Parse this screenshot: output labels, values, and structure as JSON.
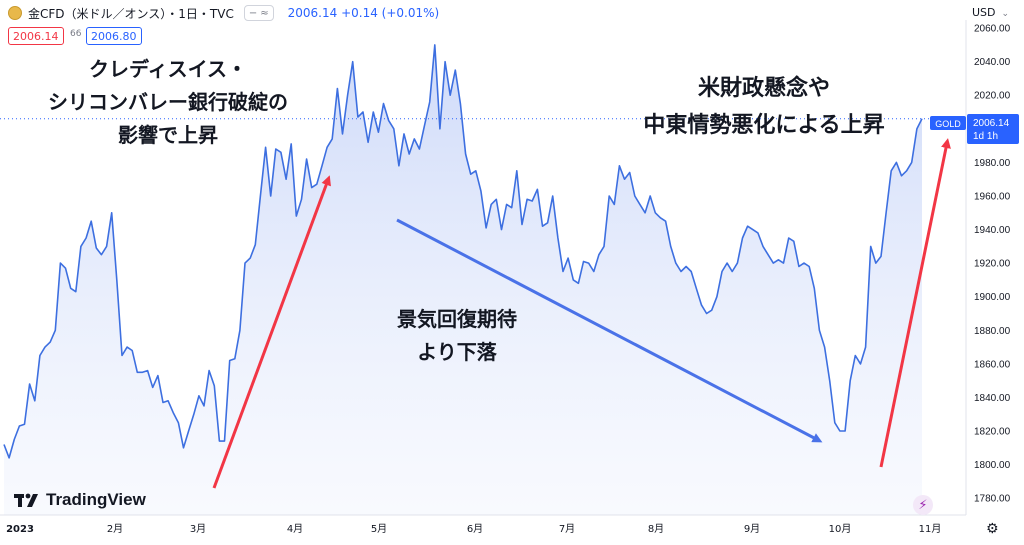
{
  "header": {
    "symbol_title": "金CFD（米ドル／オンス）・1日・TVC",
    "pill_minus": "−",
    "pill_approx": "≈",
    "quote_text": "2006.14 +0.14 (+0.01%)",
    "sell_price": "2006.14",
    "spread": "66",
    "buy_price": "2006.80",
    "currency": "USD",
    "currency_chevron": "⌄"
  },
  "annotations": {
    "left": "クレディスイス・\nシリコンバレー銀行破綻の\n影響で上昇",
    "right": "米財政懸念や\n中東情勢悪化による上昇",
    "middle": "景気回復期待\nより下落"
  },
  "branding": {
    "logo_text": "TradingView"
  },
  "icons": {
    "bolt": "⚡",
    "gear": "⚙"
  },
  "colors": {
    "line": "#3d6fe0",
    "arrow_up": "#f23645",
    "arrow_down": "#4a72e8",
    "label_bg": "#2962ff"
  },
  "chart_data": {
    "type": "area",
    "x_tick_labels": [
      "2023",
      "2月",
      "3月",
      "4月",
      "5月",
      "6月",
      "7月",
      "8月",
      "9月",
      "10月",
      "11月"
    ],
    "y_ticks": [
      1780,
      1800,
      1820,
      1840,
      1860,
      1880,
      1900,
      1920,
      1940,
      1960,
      1980,
      2000,
      2020,
      2040,
      2060
    ],
    "ylim": [
      1770,
      2066
    ],
    "last_price_label": "2006.14",
    "last_price_sub": "1d 1h",
    "symbol_label": "GOLD",
    "series": [
      {
        "values": [
          1812,
          1804,
          1815,
          1823,
          1824,
          1848,
          1838,
          1865,
          1870,
          1873,
          1880,
          1920,
          1917,
          1905,
          1903,
          1930,
          1935,
          1945,
          1929,
          1925,
          1930,
          1950,
          1910,
          1865,
          1870,
          1868,
          1855,
          1855,
          1856,
          1846,
          1853,
          1837,
          1838,
          1831,
          1825,
          1810,
          1820,
          1830,
          1841,
          1835,
          1856,
          1847,
          1814,
          1814,
          1862,
          1863,
          1880,
          1920,
          1923,
          1931,
          1960,
          1989,
          1960,
          1988,
          1986,
          1970,
          1991,
          1948,
          1958,
          1982,
          1965,
          1967,
          1978,
          1989,
          1994,
          2024,
          1997,
          2020,
          2040,
          2007,
          2010,
          1992,
          2010,
          1998,
          2015,
          2005,
          2000,
          1978,
          1997,
          1985,
          1994,
          1988,
          2002,
          2016,
          2050,
          2000,
          2040,
          2020,
          2035,
          2015,
          1985,
          1973,
          1975,
          1963,
          1941,
          1955,
          1958,
          1940,
          1955,
          1953,
          1975,
          1943,
          1958,
          1957,
          1964,
          1942,
          1944,
          1960,
          1935,
          1915,
          1923,
          1910,
          1908,
          1921,
          1920,
          1915,
          1925,
          1930,
          1960,
          1955,
          1978,
          1970,
          1974,
          1960,
          1955,
          1950,
          1960,
          1950,
          1947,
          1945,
          1930,
          1920,
          1915,
          1918,
          1915,
          1905,
          1895,
          1890,
          1892,
          1900,
          1915,
          1920,
          1915,
          1920,
          1935,
          1942,
          1940,
          1938,
          1930,
          1925,
          1920,
          1922,
          1920,
          1935,
          1933,
          1918,
          1920,
          1918,
          1905,
          1880,
          1870,
          1850,
          1825,
          1820,
          1820,
          1850,
          1865,
          1860,
          1870,
          1930,
          1920,
          1924,
          1950,
          1975,
          1980,
          1972,
          1975,
          1980,
          2000,
          2006
        ]
      }
    ]
  }
}
